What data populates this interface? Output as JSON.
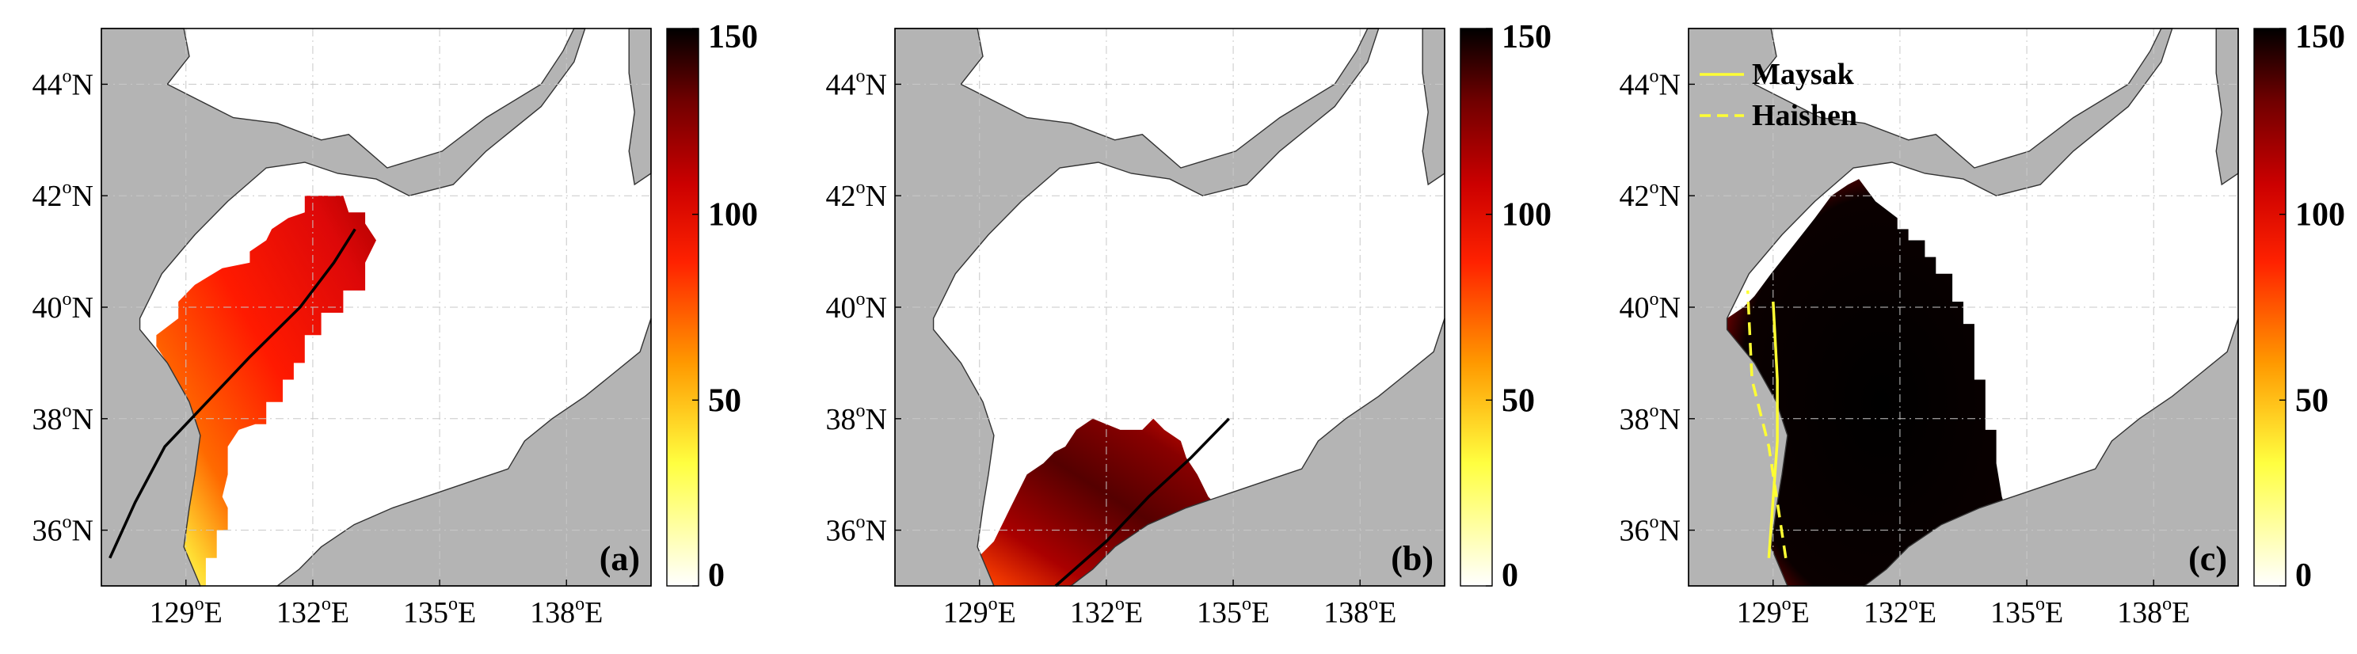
{
  "colors": {
    "land": "#b4b4b4",
    "sea": "#ffffff",
    "coast": "#333333",
    "track_black": "#000000",
    "track_yellow": "#ffff33",
    "grid": "#c8c8c8",
    "hot_colormap": [
      "#ffffff",
      "#ffff40",
      "#ff9900",
      "#ff2200",
      "#cc0000",
      "#700000",
      "#000000"
    ]
  },
  "axes": {
    "lon_ticks": [
      {
        "lon": 129,
        "label": "129",
        "hemi": "E"
      },
      {
        "lon": 132,
        "label": "132",
        "hemi": "E"
      },
      {
        "lon": 135,
        "label": "135",
        "hemi": "E"
      },
      {
        "lon": 138,
        "label": "138",
        "hemi": "E"
      }
    ],
    "lat_ticks": [
      {
        "lat": 36,
        "label": "36",
        "hemi": "N"
      },
      {
        "lat": 38,
        "label": "38",
        "hemi": "N"
      },
      {
        "lat": 40,
        "label": "40",
        "hemi": "N"
      },
      {
        "lat": 42,
        "label": "42",
        "hemi": "N"
      },
      {
        "lat": 44,
        "label": "44",
        "hemi": "N"
      }
    ],
    "degree_symbol": "o",
    "lon_range": [
      127,
      140
    ],
    "lat_range": [
      35,
      45
    ]
  },
  "colorbar": {
    "min": 0,
    "max": 150,
    "ticks": [
      {
        "value": 0,
        "label": "0"
      },
      {
        "value": 50,
        "label": "50"
      },
      {
        "value": 100,
        "label": "100"
      },
      {
        "value": 150,
        "label": "150"
      }
    ]
  },
  "panels": [
    {
      "label": "(a)",
      "track": {
        "style": "solid",
        "color": "#000000",
        "points": [
          [
            127.2,
            35.5
          ],
          [
            127.8,
            36.5
          ],
          [
            128.5,
            37.5
          ],
          [
            129.5,
            38.3
          ],
          [
            130.5,
            39.1
          ],
          [
            131.7,
            40.0
          ],
          [
            132.5,
            40.8
          ],
          [
            133.0,
            41.4
          ]
        ]
      }
    },
    {
      "label": "(b)",
      "track": {
        "style": "solid",
        "color": "#000000",
        "points": [
          [
            130.8,
            35.0
          ],
          [
            132.0,
            35.8
          ],
          [
            133.0,
            36.6
          ],
          [
            134.0,
            37.3
          ],
          [
            134.9,
            38.0
          ]
        ]
      }
    },
    {
      "label": "(c)",
      "legend": [
        {
          "name": "Maysak",
          "style": "solid"
        },
        {
          "name": "Haishen",
          "style": "dashed"
        }
      ],
      "tracks": [
        {
          "name": "Maysak",
          "style": "solid",
          "color": "#ffff33",
          "points": [
            [
              128.9,
              35.5
            ],
            [
              129.1,
              37.6
            ],
            [
              129.1,
              38.7
            ],
            [
              129.0,
              40.1
            ]
          ]
        },
        {
          "name": "Haishen",
          "style": "dashed",
          "color": "#ffff33",
          "points": [
            [
              129.3,
              35.5
            ],
            [
              128.9,
              37.5
            ],
            [
              128.5,
              38.7
            ],
            [
              128.4,
              40.3
            ]
          ]
        }
      ]
    }
  ]
}
